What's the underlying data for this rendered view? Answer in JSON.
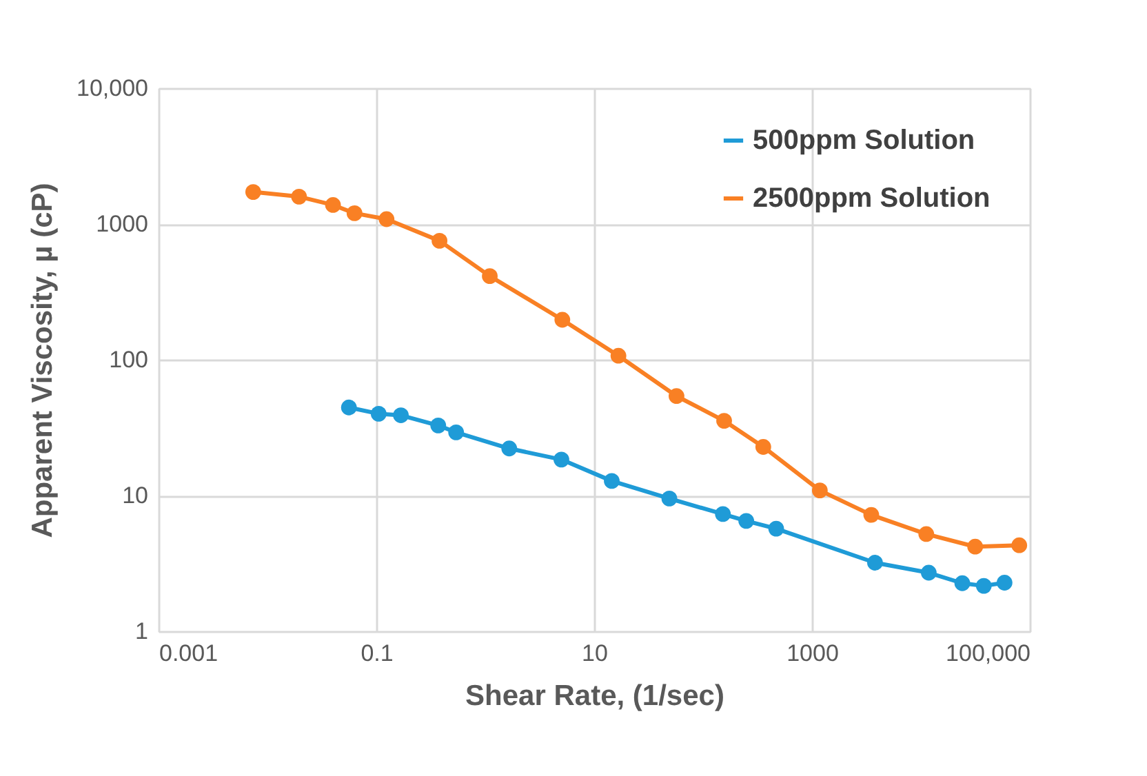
{
  "chart_data": {
    "type": "line",
    "xlabel": "Shear Rate, (1/sec)",
    "ylabel": "Apparent Viscosity, µ (cP)",
    "log": "xy",
    "grid": true,
    "legend": "top right",
    "marker": "circle",
    "line_style": "solid",
    "xlim": [
      0.001,
      100000
    ],
    "xticks": [
      0.001,
      0.1,
      10,
      1000,
      {
        "value": 100000,
        "label": "100,000"
      }
    ],
    "ylim": [
      1,
      10000
    ],
    "yticks": [
      1,
      10,
      100,
      1000,
      {
        "value": 10000,
        "label": "10,000"
      }
    ],
    "series": [
      {
        "name": "500ppm Solution",
        "color": "#1f9bd7",
        "x": [
          0.056,
          0.105,
          0.168,
          0.37,
          0.54,
          1.66,
          5,
          14.5,
          49,
          152,
          249,
          469,
          3790,
          11800,
          24000,
          37800,
          58600
        ],
        "values": [
          44.5,
          40,
          39,
          32.8,
          29.2,
          22.2,
          18.4,
          12.8,
          9.5,
          7.3,
          6.5,
          5.7,
          3.2,
          2.7,
          2.26,
          2.16,
          2.28
        ]
      },
      {
        "name": "2500ppm Solution",
        "color": "#f98024",
        "x": [
          0.0074,
          0.0195,
          0.04,
          0.063,
          0.124,
          0.38,
          1.1,
          5.1,
          16.7,
          57,
          156,
          357,
          1180,
          3500,
          11200,
          31500,
          80000
        ],
        "values": [
          1720,
          1590,
          1380,
          1200,
          1085,
          752,
          413,
          197,
          107,
          54,
          35.5,
          22.8,
          10.9,
          7.2,
          5.2,
          4.2,
          4.3
        ]
      }
    ]
  }
}
